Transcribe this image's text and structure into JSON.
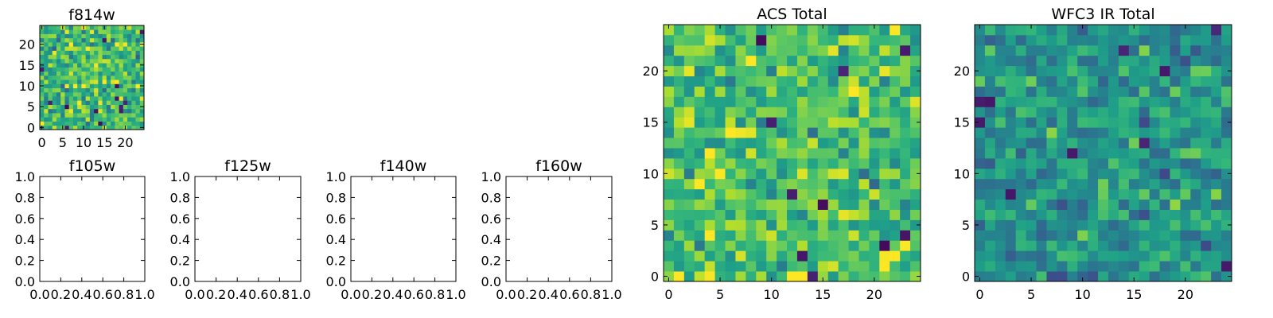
{
  "chart_data": [
    {
      "id": "f814w",
      "type": "heatmap",
      "title": "f814w",
      "grid_size": 25,
      "xlim": [
        -0.5,
        24.5
      ],
      "ylim": [
        -0.5,
        24.5
      ],
      "xticks": [
        0,
        5,
        10,
        15,
        20
      ],
      "yticks": [
        0,
        5,
        10,
        15,
        20
      ],
      "colormap": "viridis",
      "seed": 814,
      "mean": 0.68,
      "spread": 0.3
    },
    {
      "id": "f105w",
      "type": "empty",
      "title": "f105w",
      "xlim": [
        0,
        1
      ],
      "ylim": [
        0,
        1
      ],
      "xticks": [
        "0.0",
        "0.2",
        "0.4",
        "0.6",
        "0.8",
        "1.0"
      ],
      "yticks": [
        "0.0",
        "0.2",
        "0.4",
        "0.6",
        "0.8",
        "1.0"
      ]
    },
    {
      "id": "f125w",
      "type": "empty",
      "title": "f125w",
      "xlim": [
        0,
        1
      ],
      "ylim": [
        0,
        1
      ],
      "xticks": [
        "0.0",
        "0.2",
        "0.4",
        "0.6",
        "0.8",
        "1.0"
      ],
      "yticks": [
        "0.0",
        "0.2",
        "0.4",
        "0.6",
        "0.8",
        "1.0"
      ]
    },
    {
      "id": "f140w",
      "type": "empty",
      "title": "f140w",
      "xlim": [
        0,
        1
      ],
      "ylim": [
        0,
        1
      ],
      "xticks": [
        "0.0",
        "0.2",
        "0.4",
        "0.6",
        "0.8",
        "1.0"
      ],
      "yticks": [
        "0.0",
        "0.2",
        "0.4",
        "0.6",
        "0.8",
        "1.0"
      ]
    },
    {
      "id": "f160w",
      "type": "empty",
      "title": "f160w",
      "xlim": [
        0,
        1
      ],
      "ylim": [
        0,
        1
      ],
      "xticks": [
        "0.0",
        "0.2",
        "0.4",
        "0.6",
        "0.8",
        "1.0"
      ],
      "yticks": [
        "0.0",
        "0.2",
        "0.4",
        "0.6",
        "0.8",
        "1.0"
      ]
    },
    {
      "id": "acs-total",
      "type": "heatmap",
      "title": "ACS Total",
      "grid_size": 25,
      "xlim": [
        -0.5,
        24.5
      ],
      "ylim": [
        -0.5,
        24.5
      ],
      "xticks": [
        0,
        5,
        10,
        15,
        20
      ],
      "yticks": [
        0,
        5,
        10,
        15,
        20
      ],
      "colormap": "viridis",
      "seed": 2718,
      "mean": 0.7,
      "spread": 0.28
    },
    {
      "id": "wfc3-ir-total",
      "type": "heatmap",
      "title": "WFC3 IR Total",
      "grid_size": 25,
      "xlim": [
        -0.5,
        24.5
      ],
      "ylim": [
        -0.5,
        24.5
      ],
      "xticks": [
        0,
        5,
        10,
        15,
        20
      ],
      "yticks": [
        0,
        5,
        10,
        15,
        20
      ],
      "colormap": "viridis",
      "seed": 3141,
      "mean": 0.52,
      "spread": 0.24
    }
  ]
}
